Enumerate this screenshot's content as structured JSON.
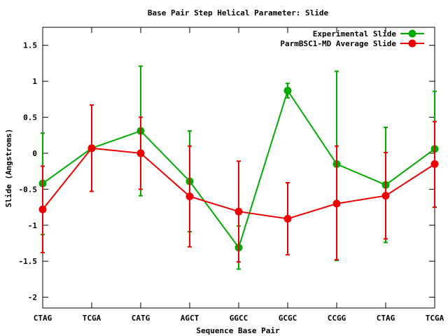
{
  "chart_data": {
    "type": "line",
    "title": "Base Pair Step Helical Parameter: Slide",
    "xlabel": "Sequence Base Pair",
    "ylabel": "Slide (Angstroms)",
    "categories": [
      "CTAG",
      "TCGA",
      "CATG",
      "AGCT",
      "GGCC",
      "GCGC",
      "CCGG",
      "CTAG",
      "TCGA"
    ],
    "ylim": [
      -2.15,
      1.75
    ],
    "yticks": [
      -2,
      -1.5,
      -1,
      -0.5,
      0,
      0.5,
      1,
      1.5
    ],
    "ytick_labels": [
      "-2",
      "-1.5",
      "-1",
      "-0.5",
      "0",
      "0.5",
      "1",
      "1.5"
    ],
    "grid": false,
    "legend_position": "top-right",
    "series": [
      {
        "name": "Experimental Slide",
        "color": "#00aa00",
        "values": [
          -0.42,
          0.07,
          0.31,
          -0.39,
          -1.31,
          0.87,
          -0.15,
          -0.44,
          0.06
        ],
        "err_low": [
          -1.13,
          0.07,
          -0.59,
          -1.09,
          -1.61,
          0.77,
          -1.49,
          -1.24,
          -0.75
        ],
        "err_high": [
          0.28,
          0.07,
          1.21,
          0.31,
          -1.01,
          0.97,
          1.14,
          0.36,
          0.86
        ]
      },
      {
        "name": "ParmBSC1-MD Average Slide",
        "color": "#ee0000",
        "values": [
          -0.78,
          0.07,
          0.0,
          -0.6,
          -0.81,
          -0.91,
          -0.7,
          -0.59,
          -0.15
        ],
        "err_low": [
          -1.38,
          -0.53,
          -0.5,
          -1.3,
          -1.51,
          -1.41,
          -1.48,
          -1.19,
          -0.75
        ],
        "err_high": [
          -0.18,
          0.67,
          0.5,
          0.1,
          -0.11,
          -0.41,
          0.1,
          0.01,
          0.44
        ]
      }
    ]
  }
}
